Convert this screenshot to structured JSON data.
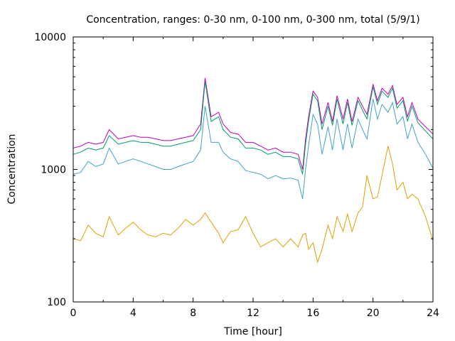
{
  "chart_data": {
    "type": "line",
    "title": "Concentration, ranges: 0-30 nm, 0-100 nm, 0-300 nm, total (5/9/1)",
    "xlabel": "Time [hour]",
    "ylabel": "Concentration",
    "xlim": [
      0,
      24
    ],
    "ylim": [
      100,
      10000
    ],
    "yscale": "log",
    "grid": false,
    "legend": "none",
    "x_ticks": [
      "0",
      "4",
      "8",
      "12",
      "16",
      "20",
      "24"
    ],
    "y_ticks": [
      "100",
      "1000",
      "10000"
    ],
    "x": [
      0,
      0.5,
      1,
      1.5,
      2,
      2.4,
      3,
      3.5,
      4,
      4.5,
      5,
      5.5,
      6,
      6.5,
      7,
      7.5,
      8,
      8.5,
      8.8,
      9.2,
      9.7,
      10,
      10.5,
      11,
      11.5,
      12,
      12.5,
      13,
      13.5,
      14,
      14.5,
      15,
      15.3,
      15.5,
      15.7,
      16,
      16.3,
      16.6,
      17,
      17.3,
      17.6,
      18,
      18.3,
      18.6,
      19,
      19.3,
      19.6,
      20,
      20.3,
      20.6,
      21,
      21.3,
      21.6,
      22,
      22.3,
      22.6,
      23,
      23.5,
      24
    ],
    "series": [
      {
        "color": "#c000c0",
        "values": [
          1450,
          1500,
          1600,
          1550,
          1600,
          2000,
          1700,
          1750,
          1800,
          1750,
          1750,
          1700,
          1650,
          1650,
          1700,
          1750,
          1800,
          2200,
          4900,
          2500,
          2700,
          2200,
          1900,
          1850,
          1600,
          1600,
          1500,
          1400,
          1450,
          1350,
          1350,
          1300,
          1000,
          1700,
          2500,
          3900,
          3500,
          2200,
          3200,
          2300,
          3600,
          2400,
          3400,
          2300,
          3500,
          3000,
          2600,
          4400,
          3300,
          4100,
          3700,
          4300,
          3100,
          3500,
          2500,
          3200,
          2400,
          2100,
          1850
        ]
      },
      {
        "color": "#00a060",
        "values": [
          1300,
          1350,
          1450,
          1400,
          1450,
          1800,
          1550,
          1600,
          1650,
          1600,
          1600,
          1550,
          1500,
          1500,
          1550,
          1600,
          1650,
          2000,
          4600,
          2300,
          2500,
          2000,
          1750,
          1700,
          1450,
          1450,
          1400,
          1300,
          1350,
          1250,
          1250,
          1200,
          920,
          1550,
          2300,
          3700,
          3300,
          2000,
          3000,
          2150,
          3400,
          2200,
          3200,
          2150,
          3300,
          2800,
          2400,
          4200,
          3100,
          3900,
          3500,
          4100,
          2900,
          3300,
          2300,
          3000,
          2250,
          1950,
          1700
        ]
      },
      {
        "color": "#40a0d0",
        "values": [
          920,
          950,
          1150,
          1050,
          1100,
          1450,
          1100,
          1150,
          1200,
          1150,
          1100,
          1050,
          1000,
          1000,
          1050,
          1100,
          1150,
          1400,
          3000,
          1600,
          1600,
          1350,
          1200,
          1150,
          980,
          950,
          920,
          850,
          900,
          850,
          860,
          830,
          600,
          1000,
          1500,
          2600,
          2200,
          1300,
          2100,
          1400,
          2400,
          1400,
          2200,
          1450,
          2400,
          2000,
          1700,
          3400,
          2400,
          3100,
          2700,
          3200,
          2200,
          2500,
          1700,
          2200,
          1600,
          1300,
          1020
        ]
      },
      {
        "color": "#e0a000",
        "values": [
          300,
          290,
          380,
          330,
          310,
          440,
          320,
          360,
          400,
          350,
          320,
          310,
          330,
          320,
          360,
          420,
          380,
          420,
          470,
          400,
          330,
          280,
          340,
          350,
          440,
          330,
          260,
          280,
          300,
          260,
          300,
          260,
          320,
          330,
          250,
          280,
          200,
          250,
          380,
          300,
          440,
          340,
          460,
          340,
          470,
          520,
          900,
          600,
          620,
          900,
          1500,
          1100,
          700,
          800,
          600,
          650,
          600,
          440,
          290
        ]
      }
    ]
  }
}
